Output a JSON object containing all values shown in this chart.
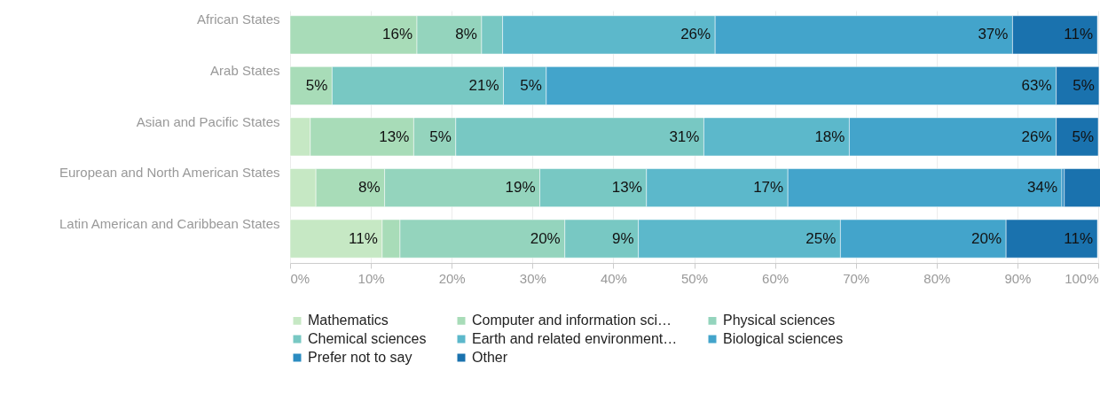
{
  "chart_data": {
    "type": "bar",
    "orientation": "horizontal",
    "stacked": true,
    "categories": [
      "African States",
      "Arab States",
      "Asian and Pacific States",
      "European and North American States",
      "Latin American and Caribbean States"
    ],
    "series": [
      {
        "name": "Mathematics",
        "color": "#c6e8c4",
        "values": [
          null,
          null,
          2.5,
          3.2,
          11.4
        ],
        "value_labels": [
          null,
          null,
          null,
          null,
          "11%"
        ]
      },
      {
        "name": "Computer and information sci…",
        "color": "#a8dcb8",
        "values": [
          15.7,
          5.2,
          12.8,
          8.5,
          2.2
        ],
        "value_labels": [
          "16%",
          "5%",
          "13%",
          "8%",
          null
        ]
      },
      {
        "name": "Physical sciences",
        "color": "#94d4bd",
        "values": [
          8,
          null,
          5.2,
          19.2,
          20.4
        ],
        "value_labels": [
          "8%",
          null,
          "5%",
          "19%",
          "20%"
        ]
      },
      {
        "name": "Chemical sciences",
        "color": "#78c8c3",
        "values": [
          2.6,
          21.2,
          30.7,
          13.2,
          9.1
        ],
        "value_labels": [
          null,
          "21%",
          "31%",
          "13%",
          "9%"
        ]
      },
      {
        "name": "Earth and related environment…",
        "color": "#5cb8cb",
        "values": [
          26.3,
          5.3,
          18,
          17.5,
          25
        ],
        "value_labels": [
          "26%",
          "5%",
          "18%",
          "17%",
          "25%"
        ]
      },
      {
        "name": "Biological sciences",
        "color": "#43a4cb",
        "values": [
          36.8,
          63.1,
          25.6,
          33.9,
          20.5
        ],
        "value_labels": [
          "37%",
          "63%",
          "26%",
          "34%",
          "20%"
        ]
      },
      {
        "name": "Prefer not to say",
        "color": "#2b8cc1",
        "values": [
          null,
          null,
          null,
          0.3,
          null
        ],
        "value_labels": [
          null,
          null,
          null,
          null,
          null
        ]
      },
      {
        "name": "Other",
        "color": "#1a72ae",
        "values": [
          10.5,
          5.3,
          5.2,
          4.5,
          11.3
        ],
        "value_labels": [
          "11%",
          "5%",
          "5%",
          null,
          "11%"
        ]
      }
    ],
    "xlim": [
      0,
      100
    ],
    "xticks": [
      {
        "value": 0,
        "label": "0%"
      },
      {
        "value": 10,
        "label": "10%"
      },
      {
        "value": 20,
        "label": "20%"
      },
      {
        "value": 30,
        "label": "30%"
      },
      {
        "value": 40,
        "label": "40%"
      },
      {
        "value": 50,
        "label": "50%"
      },
      {
        "value": 60,
        "label": "60%"
      },
      {
        "value": 70,
        "label": "70%"
      },
      {
        "value": 80,
        "label": "80%"
      },
      {
        "value": 90,
        "label": "90%"
      },
      {
        "value": 100,
        "label": "100%"
      }
    ],
    "grid": "x",
    "legend": "bottom"
  }
}
